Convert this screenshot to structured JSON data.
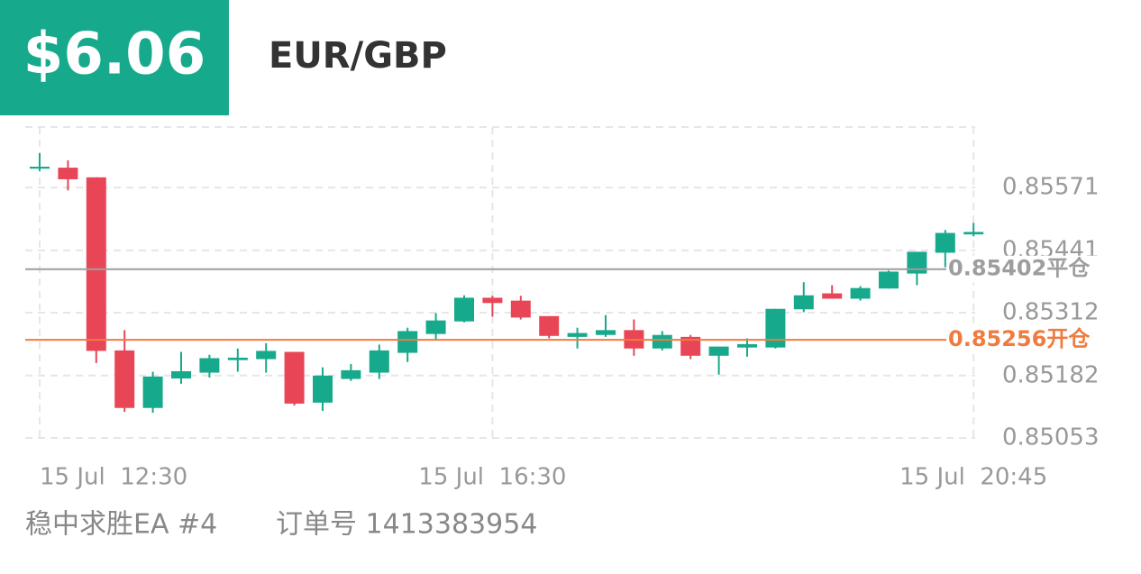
{
  "header": {
    "amount": "$6.06",
    "symbol": "EUR/GBP"
  },
  "chart_data": {
    "type": "candlestick",
    "categories": [
      "15 Jul  12:30",
      null,
      null,
      null,
      null,
      null,
      null,
      null,
      null,
      null,
      null,
      null,
      null,
      null,
      null,
      null,
      "15 Jul  16:30",
      null,
      null,
      null,
      null,
      null,
      null,
      null,
      null,
      null,
      null,
      null,
      null,
      null,
      null,
      null,
      null,
      "15 Jul  20:45"
    ],
    "open": [
      0.8561,
      0.85612,
      0.85592,
      0.85234,
      0.85115,
      0.85176,
      0.85188,
      0.85214,
      0.85216,
      0.85231,
      0.85126,
      0.85175,
      0.85188,
      0.85229,
      0.85268,
      0.85294,
      0.85343,
      0.85337,
      0.85305,
      0.85262,
      0.85266,
      0.85276,
      0.85238,
      0.85262,
      0.85223,
      0.8524,
      0.8524,
      0.85319,
      0.85352,
      0.85341,
      0.85362,
      0.85393,
      0.85436,
      0.85474
    ],
    "high": [
      0.85642,
      0.85627,
      0.85592,
      0.85276,
      0.8519,
      0.85231,
      0.85225,
      0.85238,
      0.85249,
      0.85231,
      0.85199,
      0.85206,
      0.85246,
      0.85281,
      0.85311,
      0.85348,
      0.85347,
      0.85347,
      0.85305,
      0.85281,
      0.85307,
      0.85298,
      0.85274,
      0.85266,
      0.85242,
      0.85259,
      0.8532,
      0.85375,
      0.85369,
      0.85367,
      0.85399,
      0.85438,
      0.85483,
      0.85498
    ],
    "low": [
      0.85605,
      0.85565,
      0.85208,
      0.85107,
      0.85105,
      0.85165,
      0.85178,
      0.8519,
      0.85188,
      0.8512,
      0.85109,
      0.85171,
      0.85175,
      0.8521,
      0.85255,
      0.85292,
      0.85304,
      0.85298,
      0.85259,
      0.85238,
      0.85262,
      0.85223,
      0.85234,
      0.85216,
      0.85184,
      0.85221,
      0.85238,
      0.85313,
      0.85341,
      0.85337,
      0.85362,
      0.85369,
      0.85406,
      0.8547
    ],
    "close": [
      0.85614,
      0.85588,
      0.85233,
      0.85115,
      0.8518,
      0.85191,
      0.85218,
      0.85219,
      0.85233,
      0.85124,
      0.85182,
      0.85193,
      0.85234,
      0.85274,
      0.85296,
      0.85343,
      0.85332,
      0.85302,
      0.85264,
      0.8527,
      0.85276,
      0.85238,
      0.85266,
      0.85223,
      0.85242,
      0.85247,
      0.8532,
      0.85348,
      0.85341,
      0.85363,
      0.85397,
      0.85438,
      0.85477,
      0.85479
    ],
    "up_color": "#17a98b",
    "down_color": "#e84656",
    "ylim": [
      0.85053,
      0.85696
    ],
    "yticks": [
      0.85053,
      0.85182,
      0.85312,
      0.85441,
      0.85571
    ],
    "grid": true,
    "reference_lines": [
      {
        "value": 0.85402,
        "label": "0.85402平仓",
        "color": "#9e9e9e"
      },
      {
        "value": 0.85256,
        "label": "0.85256开仓",
        "color": "#f07b3f"
      }
    ]
  },
  "footer": {
    "ea": "稳中求胜EA #4",
    "order": "订单号 1413383954"
  }
}
